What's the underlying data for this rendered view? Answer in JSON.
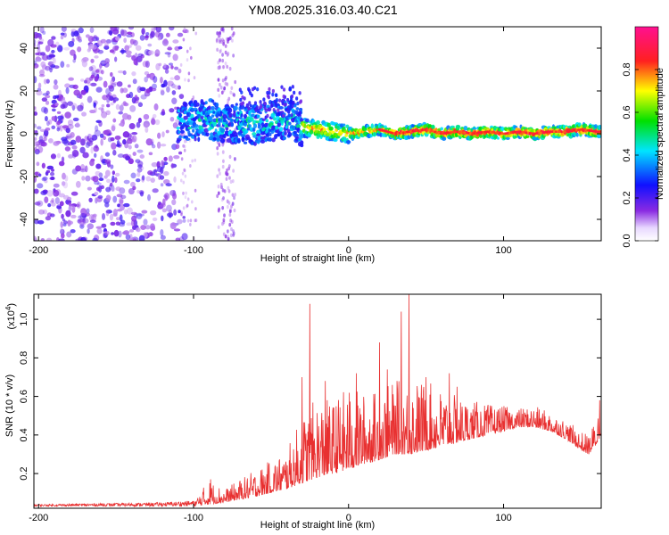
{
  "title": "YM08.2025.316.03.40.C21",
  "chart_data": [
    {
      "type": "heatmap",
      "xlabel": "Height of straight line (km)",
      "ylabel": "Frequency (Hz)",
      "xlim": [
        -203,
        163
      ],
      "ylim": [
        -50,
        50
      ],
      "xticks": [
        -200,
        -100,
        0,
        100
      ],
      "yticks": [
        -40,
        -20,
        0,
        20,
        40
      ],
      "colorbar": {
        "label": "Normalized spectral amplitude",
        "ticks": [
          0.0,
          0.2,
          0.4,
          0.6,
          0.8
        ],
        "tick_labels": [
          "0.0",
          "0.2",
          "0.4",
          "0.6",
          "0.8"
        ],
        "range": [
          0,
          1
        ],
        "colormap": "rainbow (white-purple-blue-cyan-green-yellow-red-pink)"
      },
      "ridge": {
        "description": "narrow band near 0 Hz from about -110 km to top",
        "points": [
          [
            -108,
            5
          ],
          [
            -100,
            6
          ],
          [
            -90,
            7
          ],
          [
            -80,
            4
          ],
          [
            -70,
            5
          ],
          [
            -60,
            4
          ],
          [
            -50,
            6
          ],
          [
            -40,
            7
          ],
          [
            -30,
            3
          ],
          [
            -20,
            2
          ],
          [
            -10,
            1
          ],
          [
            0,
            0
          ],
          [
            10,
            1
          ],
          [
            20,
            2
          ],
          [
            30,
            0
          ],
          [
            40,
            1
          ],
          [
            50,
            2
          ],
          [
            60,
            0
          ],
          [
            70,
            1
          ],
          [
            80,
            0
          ],
          [
            90,
            1
          ],
          [
            100,
            0
          ],
          [
            110,
            1
          ],
          [
            120,
            0
          ],
          [
            130,
            1
          ],
          [
            140,
            1
          ],
          [
            150,
            2
          ],
          [
            160,
            1
          ]
        ]
      }
    },
    {
      "type": "line",
      "xlabel": "Height of straight line (km)",
      "ylabel": "SNR (10 * v/v)",
      "y_multiplier_label": "(x10",
      "y_multiplier_exp": "4",
      "y_multiplier_close": ")",
      "xlim": [
        -203,
        163
      ],
      "ylim": [
        0.02,
        1.13
      ],
      "xticks": [
        -200,
        -100,
        0,
        100
      ],
      "yticks": [
        0.2,
        0.4,
        0.6,
        0.8,
        1.0
      ],
      "ytick_labels": [
        "0.2",
        "0.4",
        "0.6",
        "0.8",
        "1.0"
      ],
      "color": "#e83030",
      "envelope": {
        "x": [
          -203,
          -120,
          -100,
          -90,
          -80,
          -60,
          -40,
          -30,
          -20,
          -10,
          0,
          10,
          20,
          30,
          40,
          50,
          60,
          70,
          80,
          90,
          100,
          110,
          120,
          130,
          140,
          150,
          155,
          160,
          163
        ],
        "base": [
          0.03,
          0.03,
          0.03,
          0.04,
          0.05,
          0.08,
          0.12,
          0.15,
          0.18,
          0.2,
          0.22,
          0.25,
          0.27,
          0.3,
          0.3,
          0.32,
          0.34,
          0.36,
          0.38,
          0.4,
          0.42,
          0.44,
          0.44,
          0.42,
          0.38,
          0.32,
          0.3,
          0.35,
          0.4
        ],
        "peak": [
          0.04,
          0.05,
          0.06,
          0.17,
          0.12,
          0.22,
          0.32,
          0.5,
          0.6,
          0.58,
          0.66,
          0.62,
          0.64,
          0.68,
          0.7,
          0.68,
          0.64,
          0.6,
          0.58,
          0.56,
          0.55,
          0.54,
          0.55,
          0.52,
          0.48,
          0.42,
          0.4,
          0.5,
          0.6
        ]
      },
      "spikes": [
        [
          -89,
          0.17
        ],
        [
          -30,
          0.7
        ],
        [
          -25,
          1.08
        ],
        [
          -15,
          0.68
        ],
        [
          5,
          0.72
        ],
        [
          20,
          0.88
        ],
        [
          25,
          0.74
        ],
        [
          34,
          1.04
        ],
        [
          39,
          1.13
        ],
        [
          50,
          0.7
        ],
        [
          65,
          0.72
        ],
        [
          70,
          0.65
        ],
        [
          162,
          0.58
        ]
      ]
    }
  ]
}
